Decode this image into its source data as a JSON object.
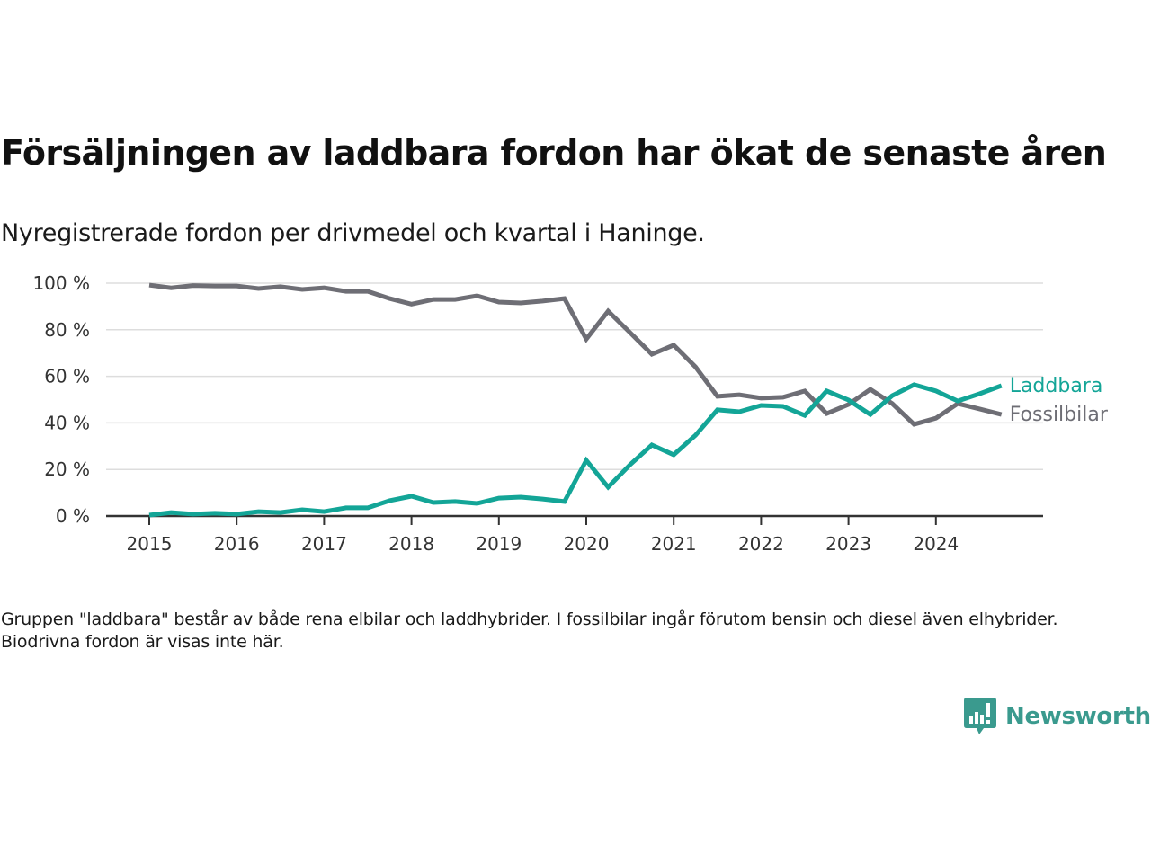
{
  "title": "Försäljningen av laddbara fordon har ökat de senaste åren",
  "subtitle": "Nyregistrerade fordon per drivmedel och kvartal i Haninge.",
  "footnote": "Gruppen \"laddbara\" består av både rena elbilar och laddhybrider. I fossilbilar ingår förutom bensin och diesel även elhybrider. Biodrivna fordon är visas inte här.",
  "logo": {
    "text": "Newsworthy",
    "icon": "bar-chart-speech-bubble-icon",
    "color": "#3a9a8e"
  },
  "chart_data": {
    "type": "line",
    "title": "Försäljningen av laddbara fordon har ökat de senaste åren",
    "subtitle": "Nyregistrerade fordon per drivmedel och kvartal i Haninge.",
    "xlabel": "",
    "ylabel": "",
    "ylim": [
      0,
      100
    ],
    "y_ticks": [
      0,
      20,
      40,
      60,
      80,
      100
    ],
    "y_tick_labels": [
      "0 %",
      "20 %",
      "40 %",
      "60 %",
      "80 %",
      "100 %"
    ],
    "x_ticks": [
      2015,
      2016,
      2017,
      2018,
      2019,
      2020,
      2021,
      2022,
      2023,
      2024
    ],
    "x_tick_labels": [
      "2015",
      "2016",
      "2017",
      "2018",
      "2019",
      "2020",
      "2021",
      "2022",
      "2023",
      "2024"
    ],
    "xlim": [
      2015,
      2025.5
    ],
    "grid": true,
    "legend": "right-end-labels",
    "x": [
      2015.0,
      2015.25,
      2015.5,
      2015.75,
      2016.0,
      2016.25,
      2016.5,
      2016.75,
      2017.0,
      2017.25,
      2017.5,
      2017.75,
      2018.0,
      2018.25,
      2018.5,
      2018.75,
      2019.0,
      2019.25,
      2019.5,
      2019.75,
      2020.0,
      2020.25,
      2020.5,
      2020.75,
      2021.0,
      2021.25,
      2021.5,
      2021.75,
      2022.0,
      2022.25,
      2022.5,
      2022.75,
      2023.0,
      2023.25,
      2023.5,
      2023.75,
      2024.0,
      2024.25,
      2024.5,
      2024.75
    ],
    "series": [
      {
        "name": "Fossilbilar",
        "color": "#6e6e75",
        "values": [
          99.2,
          98.0,
          99.0,
          98.8,
          98.8,
          97.7,
          98.5,
          97.3,
          98.0,
          96.5,
          96.5,
          93.4,
          91.0,
          93.0,
          93.0,
          94.6,
          91.9,
          91.5,
          92.3,
          93.4,
          76.0,
          88.0,
          78.8,
          69.5,
          73.4,
          64.0,
          51.4,
          52.1,
          50.6,
          51.0,
          53.7,
          44.0,
          47.9,
          54.4,
          48.3,
          39.4,
          42.0,
          48.3,
          46.0,
          43.6
        ]
      },
      {
        "name": "Laddbara",
        "color": "#13a597",
        "values": [
          0.4,
          1.5,
          0.8,
          1.2,
          0.8,
          1.9,
          1.5,
          2.7,
          1.9,
          3.5,
          3.5,
          6.6,
          8.5,
          5.8,
          6.2,
          5.4,
          7.7,
          8.1,
          7.3,
          6.2,
          23.9,
          12.4,
          22.0,
          30.5,
          26.3,
          34.7,
          45.6,
          44.8,
          47.5,
          47.1,
          43.2,
          53.7,
          49.8,
          43.6,
          51.7,
          56.4,
          53.7,
          49.4,
          52.5,
          56.0
        ]
      }
    ],
    "colors": {
      "grid": "#dddddd",
      "axis": "#333333",
      "tick_text": "#333333"
    }
  }
}
